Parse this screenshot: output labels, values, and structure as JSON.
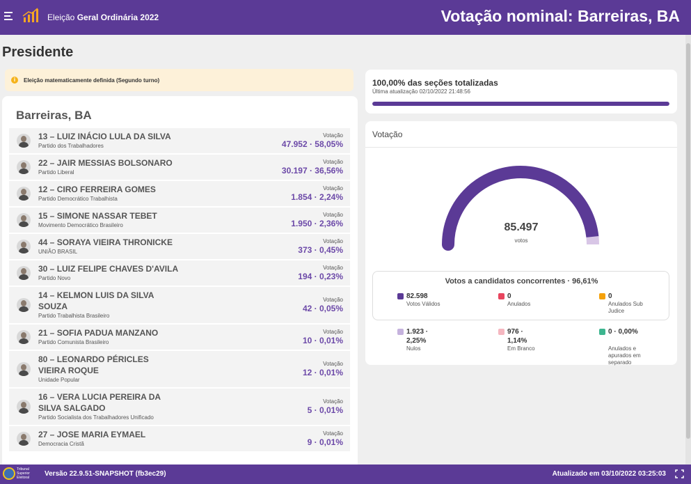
{
  "header": {
    "app_title_prefix": "Eleição ",
    "app_title_bold": "Geral Ordinária 2022",
    "page_heading": "Votação nominal: Barreiras, BA"
  },
  "office": "Presidente",
  "alert": {
    "text": "Eleição matematicamente definida (Segundo turno)"
  },
  "city": "Barreiras, BA",
  "candidates": [
    {
      "name": "13 – LUIZ INÁCIO LULA DA SILVA",
      "party": "Partido dos Trabalhadores",
      "vote_label": "Votação",
      "votes": "47.952 · 58,05%"
    },
    {
      "name": "22 – JAIR MESSIAS BOLSONARO",
      "party": "Partido Liberal",
      "vote_label": "Votação",
      "votes": "30.197 · 36,56%"
    },
    {
      "name": "12 – CIRO FERREIRA GOMES",
      "party": "Partido Democrático Trabalhista",
      "vote_label": "Votação",
      "votes": "1.854 · 2,24%"
    },
    {
      "name": "15 – SIMONE NASSAR TEBET",
      "party": "Movimento Democrático Brasileiro",
      "vote_label": "Votação",
      "votes": "1.950 · 2,36%"
    },
    {
      "name": "44 – SORAYA VIEIRA THRONICKE",
      "party": "UNIÃO BRASIL",
      "vote_label": "Votação",
      "votes": "373 · 0,45%"
    },
    {
      "name": "30 – LUIZ FELIPE CHAVES D'AVILA",
      "party": "Partido Novo",
      "vote_label": "Votação",
      "votes": "194 · 0,23%"
    },
    {
      "name": "14 – KELMON LUIS DA SILVA SOUZA",
      "party": "Partido Trabalhista Brasileiro",
      "vote_label": "Votação",
      "votes": "42 · 0,05%"
    },
    {
      "name": "21 – SOFIA PADUA MANZANO",
      "party": "Partido Comunista Brasileiro",
      "vote_label": "Votação",
      "votes": "10 · 0,01%"
    },
    {
      "name": "80 – LEONARDO PÉRICLES VIEIRA ROQUE",
      "party": "Unidade Popular",
      "vote_label": "Votação",
      "votes": "12 · 0,01%"
    },
    {
      "name": "16 – VERA LUCIA PEREIRA DA SILVA SALGADO",
      "party": "Partido Socialista dos Trabalhadores Unificado",
      "vote_label": "Votação",
      "votes": "5 · 0,01%"
    },
    {
      "name": "27 – JOSE MARIA EYMAEL",
      "party": "Democracia Cristã",
      "vote_label": "Votação",
      "votes": "9 · 0,01%"
    }
  ],
  "progress": {
    "title": "100,00% das seções totalizadas",
    "updated": "Última atualização 02/10/2022 21:48:56",
    "percent": 100
  },
  "votes": {
    "card_title": "Votação",
    "total": "85.497",
    "total_label": "votos",
    "valid_fraction": 0.9661,
    "breakdown_title": "Votos a candidatos concorrentes · 96,61%",
    "items": [
      {
        "value": "82.598",
        "label": "Votos Válidos",
        "color": "#5b3a96"
      },
      {
        "value": "0",
        "label": "Anulados",
        "color": "#e8455e"
      },
      {
        "value": "0",
        "label": "Anulados Sub Judice",
        "color": "#f5a10a"
      },
      {
        "value": "1.923 · 2,25%",
        "label": "Nulos",
        "color": "#c5b2dd"
      },
      {
        "value": "976 · 1,14%",
        "label": "Em Branco",
        "color": "#f5b7c0"
      },
      {
        "value": "0 · 0,00%",
        "label": "Anulados e apurados em separado",
        "color": "#3db58f"
      }
    ]
  },
  "footer": {
    "org": "Tribunal Superior Eleitoral",
    "version": "Versão 22.9.51-SNAPSHOT (fb3ec29)",
    "updated": "Atualizado em 03/10/2022 03:25:03"
  },
  "colors": {
    "brand": "#5b3a96",
    "accent": "#6c49a8",
    "alert_bg": "#fdf1d9"
  }
}
